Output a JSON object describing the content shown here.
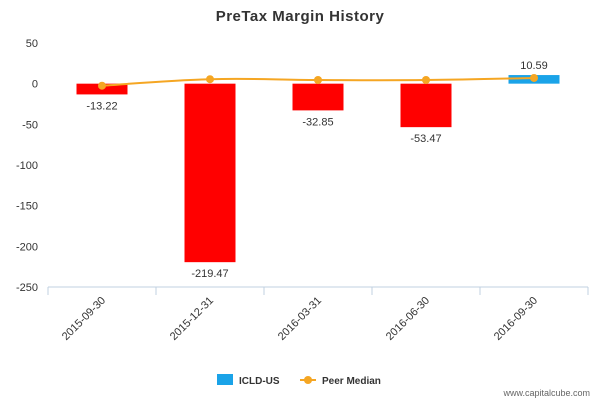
{
  "chart_data": {
    "type": "bar",
    "title": "PreTax Margin History",
    "categories": [
      "2015-09-30",
      "2015-12-31",
      "2016-03-31",
      "2016-06-30",
      "2016-09-30"
    ],
    "series": [
      {
        "name": "ICLD-US",
        "type": "bar",
        "values": [
          -13.22,
          -219.47,
          -32.85,
          -53.47,
          10.59
        ],
        "labels": [
          "-13.22",
          "-219.47",
          "-32.85",
          "-53.47",
          "10.59"
        ],
        "colors": [
          "#ff0000",
          "#ff0000",
          "#ff0000",
          "#ff0000",
          "#1aa3e8"
        ]
      },
      {
        "name": "Peer Median",
        "type": "line",
        "color": "#f5a623",
        "values": [
          -2.5,
          5.5,
          4.5,
          4.5,
          7.0
        ]
      }
    ],
    "ylim": [
      -250,
      50
    ],
    "yticks": [
      50,
      0,
      -50,
      -100,
      -150,
      -200,
      -250
    ],
    "xlabel": "",
    "ylabel": "",
    "legend_position": "bottom-center",
    "grid": false
  },
  "credit": "www.capitalcube.com"
}
